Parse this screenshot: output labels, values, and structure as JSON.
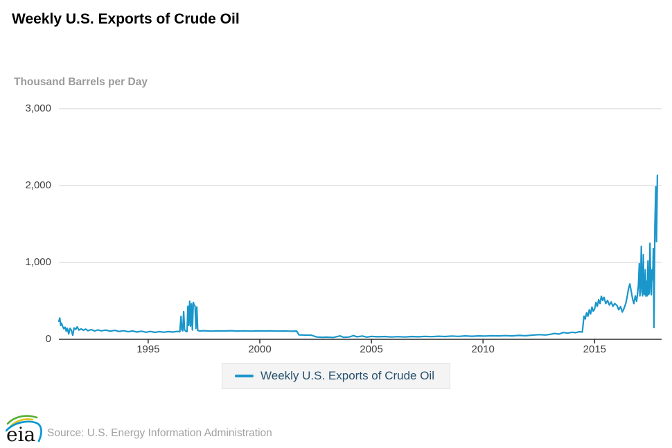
{
  "header": {
    "title": "Weekly U.S. Exports of Crude Oil"
  },
  "units_label": "Thousand Barrels per Day",
  "legend": {
    "label": "Weekly U.S. Exports of Crude Oil"
  },
  "footer": {
    "logo_text": "eia",
    "source_text": "Source: U.S. Energy Information Administration"
  },
  "colors": {
    "line": "#1a96cb",
    "grid": "#d2d2d2",
    "axis": "#2b2b2b",
    "tick_label": "#404040",
    "units": "#9a9a9a",
    "legend_text": "#26506d",
    "legend_bg": "#f4f4f4",
    "legend_border": "#e2e2e2",
    "source": "#a2a2a2",
    "logo_green": "#54ae32",
    "logo_yellow": "#ddc420",
    "logo_blue": "#0a96d2"
  },
  "chart_data": {
    "type": "line",
    "title": "Weekly U.S. Exports of Crude Oil",
    "xlabel": "",
    "ylabel": "Thousand Barrels per Day",
    "xlim": [
      1991,
      2018
    ],
    "ylim": [
      0,
      3000
    ],
    "x_ticks": [
      1995,
      2000,
      2005,
      2010,
      2015
    ],
    "x_tick_labels": [
      "1995",
      "2000",
      "2005",
      "2010",
      "2015"
    ],
    "y_ticks": [
      0,
      1000,
      2000,
      3000
    ],
    "y_tick_labels": [
      "0",
      "1,000",
      "2,000",
      "3,000"
    ],
    "grid": true,
    "legend_position": "bottom",
    "series": [
      {
        "name": "Weekly U.S. Exports of Crude Oil",
        "color": "#1a96cb",
        "points": [
          [
            1991.0,
            235
          ],
          [
            1991.04,
            277
          ],
          [
            1991.08,
            180
          ],
          [
            1991.12,
            210
          ],
          [
            1991.17,
            165
          ],
          [
            1991.22,
            138
          ],
          [
            1991.28,
            158
          ],
          [
            1991.33,
            105
          ],
          [
            1991.38,
            142
          ],
          [
            1991.44,
            70
          ],
          [
            1991.5,
            142
          ],
          [
            1991.56,
            118
          ],
          [
            1991.62,
            52
          ],
          [
            1991.68,
            148
          ],
          [
            1991.75,
            128
          ],
          [
            1991.82,
            162
          ],
          [
            1991.9,
            120
          ],
          [
            1992.0,
            135
          ],
          [
            1992.1,
            118
          ],
          [
            1992.2,
            132
          ],
          [
            1992.3,
            112
          ],
          [
            1992.45,
            126
          ],
          [
            1992.6,
            108
          ],
          [
            1992.75,
            122
          ],
          [
            1992.9,
            110
          ],
          [
            1993.1,
            120
          ],
          [
            1993.3,
            105
          ],
          [
            1993.5,
            116
          ],
          [
            1993.7,
            102
          ],
          [
            1993.9,
            112
          ],
          [
            1994.1,
            98
          ],
          [
            1994.3,
            108
          ],
          [
            1994.5,
            95
          ],
          [
            1994.7,
            105
          ],
          [
            1994.9,
            92
          ],
          [
            1995.1,
            102
          ],
          [
            1995.3,
            90
          ],
          [
            1995.5,
            100
          ],
          [
            1995.7,
            92
          ],
          [
            1995.9,
            100
          ],
          [
            1996.1,
            95
          ],
          [
            1996.3,
            103
          ],
          [
            1996.42,
            98
          ],
          [
            1996.47,
            300
          ],
          [
            1996.51,
            120
          ],
          [
            1996.55,
            110
          ],
          [
            1996.59,
            360
          ],
          [
            1996.63,
            125
          ],
          [
            1996.68,
            105
          ],
          [
            1996.74,
            100
          ],
          [
            1996.78,
            430
          ],
          [
            1996.82,
            180
          ],
          [
            1996.86,
            495
          ],
          [
            1996.9,
            170
          ],
          [
            1996.94,
            460
          ],
          [
            1996.98,
            120
          ],
          [
            1997.02,
            480
          ],
          [
            1997.06,
            445
          ],
          [
            1997.1,
            430
          ],
          [
            1997.14,
            140
          ],
          [
            1997.18,
            420
          ],
          [
            1997.22,
            115
          ],
          [
            1997.3,
            108
          ],
          [
            1997.5,
            112
          ],
          [
            1997.8,
            106
          ],
          [
            1998.1,
            110
          ],
          [
            1998.4,
            108
          ],
          [
            1998.7,
            112
          ],
          [
            1999.0,
            107
          ],
          [
            1999.3,
            110
          ],
          [
            1999.6,
            106
          ],
          [
            1999.9,
            110
          ],
          [
            2000.2,
            108
          ],
          [
            2000.5,
            110
          ],
          [
            2000.8,
            106
          ],
          [
            2001.1,
            108
          ],
          [
            2001.4,
            105
          ],
          [
            2001.65,
            107
          ],
          [
            2001.75,
            58
          ],
          [
            2002.0,
            55
          ],
          [
            2002.3,
            54
          ],
          [
            2002.55,
            30
          ],
          [
            2002.8,
            26
          ],
          [
            2003.0,
            28
          ],
          [
            2003.3,
            24
          ],
          [
            2003.6,
            44
          ],
          [
            2003.75,
            26
          ],
          [
            2004.0,
            30
          ],
          [
            2004.2,
            48
          ],
          [
            2004.35,
            32
          ],
          [
            2004.6,
            42
          ],
          [
            2004.8,
            28
          ],
          [
            2005.0,
            38
          ],
          [
            2005.3,
            32
          ],
          [
            2005.6,
            36
          ],
          [
            2005.9,
            30
          ],
          [
            2006.2,
            34
          ],
          [
            2006.5,
            30
          ],
          [
            2006.8,
            36
          ],
          [
            2007.1,
            32
          ],
          [
            2007.4,
            38
          ],
          [
            2007.7,
            34
          ],
          [
            2008.0,
            40
          ],
          [
            2008.3,
            36
          ],
          [
            2008.6,
            42
          ],
          [
            2008.9,
            38
          ],
          [
            2009.2,
            44
          ],
          [
            2009.5,
            40
          ],
          [
            2009.8,
            44
          ],
          [
            2010.1,
            42
          ],
          [
            2010.4,
            46
          ],
          [
            2010.7,
            44
          ],
          [
            2011.0,
            48
          ],
          [
            2011.3,
            44
          ],
          [
            2011.6,
            50
          ],
          [
            2011.9,
            46
          ],
          [
            2012.2,
            54
          ],
          [
            2012.5,
            60
          ],
          [
            2012.8,
            56
          ],
          [
            2013.0,
            64
          ],
          [
            2013.2,
            76
          ],
          [
            2013.4,
            68
          ],
          [
            2013.6,
            88
          ],
          [
            2013.8,
            80
          ],
          [
            2014.0,
            92
          ],
          [
            2014.15,
            86
          ],
          [
            2014.3,
            98
          ],
          [
            2014.45,
            95
          ],
          [
            2014.52,
            300
          ],
          [
            2014.58,
            265
          ],
          [
            2014.64,
            345
          ],
          [
            2014.7,
            300
          ],
          [
            2014.76,
            385
          ],
          [
            2014.82,
            330
          ],
          [
            2014.88,
            420
          ],
          [
            2014.94,
            365
          ],
          [
            2015.0,
            395
          ],
          [
            2015.06,
            480
          ],
          [
            2015.12,
            430
          ],
          [
            2015.18,
            515
          ],
          [
            2015.24,
            465
          ],
          [
            2015.3,
            560
          ],
          [
            2015.36,
            505
          ],
          [
            2015.42,
            545
          ],
          [
            2015.5,
            465
          ],
          [
            2015.58,
            505
          ],
          [
            2015.66,
            445
          ],
          [
            2015.74,
            485
          ],
          [
            2015.82,
            430
          ],
          [
            2015.9,
            465
          ],
          [
            2016.0,
            440
          ],
          [
            2016.08,
            385
          ],
          [
            2016.16,
            425
          ],
          [
            2016.24,
            355
          ],
          [
            2016.32,
            405
          ],
          [
            2016.4,
            470
          ],
          [
            2016.46,
            560
          ],
          [
            2016.52,
            660
          ],
          [
            2016.58,
            720
          ],
          [
            2016.64,
            620
          ],
          [
            2016.7,
            525
          ],
          [
            2016.76,
            465
          ],
          [
            2016.82,
            565
          ],
          [
            2016.88,
            495
          ],
          [
            2016.92,
            590
          ],
          [
            2016.96,
            700
          ],
          [
            2017.0,
            985
          ],
          [
            2017.03,
            565
          ],
          [
            2017.06,
            745
          ],
          [
            2017.09,
            1210
          ],
          [
            2017.12,
            620
          ],
          [
            2017.15,
            565
          ],
          [
            2017.18,
            1100
          ],
          [
            2017.21,
            600
          ],
          [
            2017.24,
            582
          ],
          [
            2017.27,
            905
          ],
          [
            2017.3,
            560
          ],
          [
            2017.33,
            755
          ],
          [
            2017.36,
            565
          ],
          [
            2017.39,
            1020
          ],
          [
            2017.42,
            585
          ],
          [
            2017.45,
            600
          ],
          [
            2017.48,
            1250
          ],
          [
            2017.51,
            760
          ],
          [
            2017.54,
            580
          ],
          [
            2017.57,
            905
          ],
          [
            2017.6,
            775
          ],
          [
            2017.63,
            1180
          ],
          [
            2017.66,
            153
          ],
          [
            2017.7,
            1470
          ],
          [
            2017.74,
            1984
          ],
          [
            2017.77,
            1270
          ],
          [
            2017.81,
            2133
          ]
        ]
      }
    ]
  }
}
